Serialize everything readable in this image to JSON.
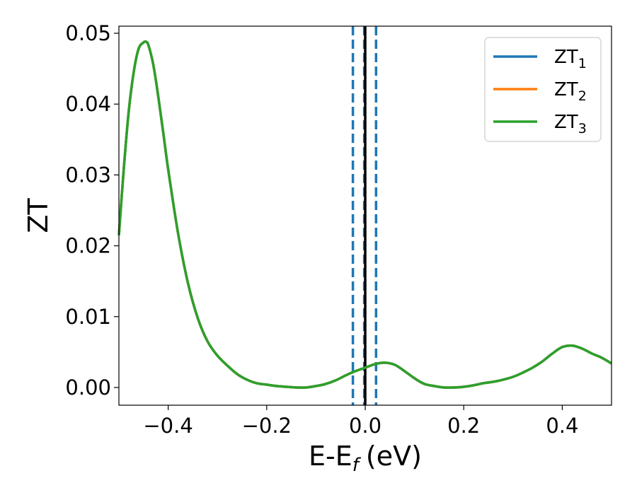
{
  "chart_data": {
    "type": "line",
    "xlabel": "E-E",
    "xlabel_sub": "f",
    "xlabel_unit": "(eV)",
    "ylabel": "ZT",
    "xlim": [
      -0.5,
      0.5
    ],
    "ylim": [
      -0.0025,
      0.051
    ],
    "xticks": [
      -0.4,
      -0.2,
      0.0,
      0.2,
      0.4
    ],
    "xtick_labels": [
      "−0.4",
      "−0.2",
      "0.0",
      "0.2",
      "0.4"
    ],
    "yticks": [
      0.0,
      0.01,
      0.02,
      0.03,
      0.04,
      0.05
    ],
    "ytick_labels": [
      "0.00",
      "0.01",
      "0.02",
      "0.03",
      "0.04",
      "0.05"
    ],
    "grid": false,
    "legend_position": "top-right",
    "series": [
      {
        "name": "ZT",
        "sub": "1",
        "color": "#1f77b4"
      },
      {
        "name": "ZT",
        "sub": "2",
        "color": "#ff7f0e"
      },
      {
        "name": "ZT",
        "sub": "3",
        "color": "#2ca02c"
      }
    ],
    "curve": {
      "x": [
        -0.5,
        -0.49,
        -0.48,
        -0.47,
        -0.46,
        -0.45,
        -0.445,
        -0.44,
        -0.43,
        -0.42,
        -0.41,
        -0.4,
        -0.38,
        -0.36,
        -0.34,
        -0.32,
        -0.3,
        -0.28,
        -0.26,
        -0.24,
        -0.22,
        -0.2,
        -0.18,
        -0.16,
        -0.14,
        -0.12,
        -0.1,
        -0.08,
        -0.06,
        -0.04,
        -0.02,
        0.0,
        0.02,
        0.04,
        0.06,
        0.08,
        0.1,
        0.12,
        0.14,
        0.16,
        0.18,
        0.2,
        0.22,
        0.24,
        0.26,
        0.28,
        0.3,
        0.32,
        0.34,
        0.36,
        0.38,
        0.4,
        0.42,
        0.44,
        0.46,
        0.48,
        0.5
      ],
      "y": [
        0.0215,
        0.031,
        0.039,
        0.0445,
        0.0478,
        0.0487,
        0.0488,
        0.0483,
        0.0455,
        0.041,
        0.036,
        0.0308,
        0.0218,
        0.0148,
        0.0098,
        0.0065,
        0.0045,
        0.0031,
        0.0019,
        0.0011,
        0.0006,
        0.0004,
        0.0002,
        0.0001,
        0.0,
        0.0,
        0.0002,
        0.0005,
        0.001,
        0.0017,
        0.0023,
        0.0028,
        0.0033,
        0.0035,
        0.0032,
        0.0023,
        0.0013,
        0.0005,
        0.0002,
        0.0,
        0.0,
        0.0001,
        0.0003,
        0.0006,
        0.0008,
        0.0011,
        0.0015,
        0.0021,
        0.0028,
        0.0037,
        0.0048,
        0.0057,
        0.0059,
        0.0055,
        0.0048,
        0.0042,
        0.0034
      ]
    },
    "vlines": [
      {
        "x": -0.025,
        "style": "dashed",
        "color": "#1f77b4"
      },
      {
        "x": -0.002,
        "style": "dashed",
        "color": "#1f77b4"
      },
      {
        "x": 0.0,
        "style": "solid",
        "color": "#000000"
      },
      {
        "x": 0.022,
        "style": "dashed",
        "color": "#1f77b4"
      }
    ]
  }
}
